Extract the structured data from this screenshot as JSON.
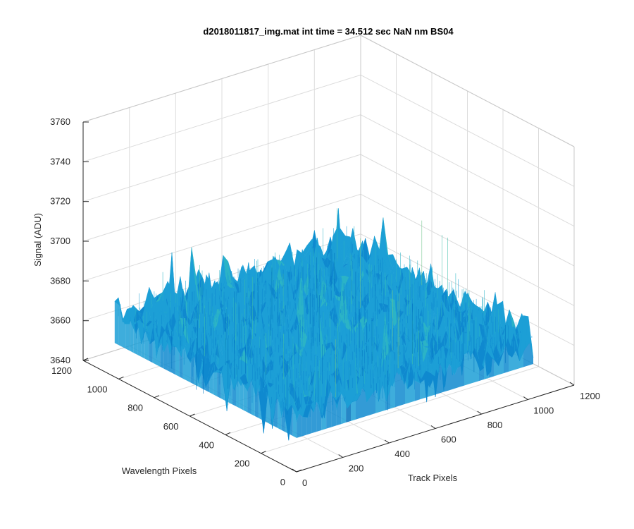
{
  "chart_data": {
    "type": "surface",
    "title": "d2018011817_img.mat int time = 34.512 sec  NaN nm BS04",
    "xlabel": "Track Pixels",
    "ylabel": "Wavelength Pixels",
    "zlabel": "Signal (ADU)",
    "xlim": [
      0,
      1200
    ],
    "ylim": [
      0,
      1200
    ],
    "zlim": [
      3640,
      3760
    ],
    "xticks": [
      "0",
      "200",
      "400",
      "600",
      "800",
      "1000",
      "1200"
    ],
    "yticks": [
      "0",
      "200",
      "400",
      "600",
      "800",
      "1000",
      "1200"
    ],
    "zticks": [
      "3640",
      "3660",
      "3680",
      "3700",
      "3720",
      "3740",
      "3760"
    ],
    "grid": true,
    "data_extent": {
      "x": [
        1,
        1024
      ],
      "y": [
        1,
        1024
      ]
    },
    "signal_range": [
      3645,
      3725
    ],
    "signal_mean": 3671,
    "colormap": [
      "#0072bd",
      "#0f89cf",
      "#1c9fd6",
      "#2bb3c6",
      "#3fbfa8",
      "#6dc48a",
      "#a5c467"
    ]
  }
}
